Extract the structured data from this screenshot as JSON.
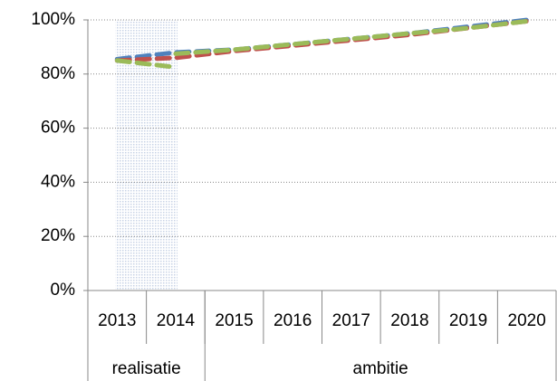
{
  "chart_data": {
    "type": "line",
    "categories": [
      "2013",
      "2014",
      "2015",
      "2016",
      "2017",
      "2018",
      "2019",
      "2020"
    ],
    "groups": [
      {
        "label": "realisatie",
        "span": 2
      },
      {
        "label": "ambitie",
        "span": 6
      }
    ],
    "series": [
      {
        "color": "#4f81bd",
        "values": [
          85.5,
          88,
          89,
          91,
          93,
          95,
          97.5,
          100
        ]
      },
      {
        "color": "#c0504d",
        "values": [
          85,
          86,
          88.5,
          90.5,
          92.5,
          94.5,
          97,
          99.5
        ]
      },
      {
        "color": "#9bbb59",
        "values": [
          85,
          82.5,
          null,
          null,
          null,
          null,
          null,
          null
        ]
      },
      {
        "color": "#9bbb59",
        "values": [
          null,
          87.5,
          89,
          91,
          93,
          95,
          97,
          99.5
        ]
      }
    ],
    "ylim": [
      0,
      100
    ],
    "yticks": [
      {
        "value": 0,
        "label": "0%"
      },
      {
        "value": 20,
        "label": "20%"
      },
      {
        "value": 40,
        "label": "40%"
      },
      {
        "value": 60,
        "label": "60%"
      },
      {
        "value": 80,
        "label": "80%"
      },
      {
        "value": 100,
        "label": "100%"
      }
    ],
    "grid": true
  }
}
